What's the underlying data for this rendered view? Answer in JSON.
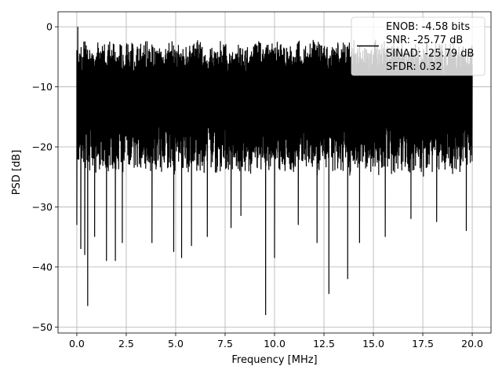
{
  "chart_data": {
    "type": "line",
    "title": "",
    "xlabel": "Frequency [MHz]",
    "ylabel": "PSD [dB]",
    "xlim": [
      -0.95,
      20.95
    ],
    "ylim": [
      -51,
      2.5
    ],
    "x_ticks": [
      0.0,
      2.5,
      5.0,
      7.5,
      10.0,
      12.5,
      15.0,
      17.5,
      20.0
    ],
    "x_tick_labels": [
      "0.0",
      "2.5",
      "5.0",
      "7.5",
      "10.0",
      "12.5",
      "15.0",
      "17.5",
      "20.0"
    ],
    "y_ticks": [
      0,
      -10,
      -20,
      -30,
      -40,
      -50
    ],
    "y_tick_labels": [
      "0",
      "−10",
      "−20",
      "−30",
      "−40",
      "−50"
    ],
    "grid": true,
    "legend_position": "top-right",
    "legend_lines": [
      "ENOB: -4.58 bits",
      "SNR: -25.77 dB",
      "SINAD: -25.79 dB",
      "SFDR: 0.32"
    ],
    "series": [
      {
        "color": "#000000",
        "x_range": [
          0.0,
          20.0
        ],
        "peak": {
          "x": 0.05,
          "y": 0.0
        },
        "noise_envelope": {
          "upper": [
            -6,
            -2
          ],
          "lower": [
            -18,
            -25
          ]
        },
        "notable_dips": [
          {
            "x": 0.0,
            "y": -33
          },
          {
            "x": 0.2,
            "y": -37
          },
          {
            "x": 0.4,
            "y": -38
          },
          {
            "x": 0.55,
            "y": -46.5
          },
          {
            "x": 0.9,
            "y": -35
          },
          {
            "x": 1.5,
            "y": -39
          },
          {
            "x": 1.95,
            "y": -39
          },
          {
            "x": 2.3,
            "y": -36
          },
          {
            "x": 3.8,
            "y": -36
          },
          {
            "x": 4.9,
            "y": -37.5
          },
          {
            "x": 5.3,
            "y": -38.5
          },
          {
            "x": 5.8,
            "y": -36.5
          },
          {
            "x": 6.6,
            "y": -35
          },
          {
            "x": 7.8,
            "y": -33.5
          },
          {
            "x": 8.3,
            "y": -31.5
          },
          {
            "x": 9.55,
            "y": -48
          },
          {
            "x": 10.0,
            "y": -38.5
          },
          {
            "x": 11.2,
            "y": -33
          },
          {
            "x": 12.15,
            "y": -36
          },
          {
            "x": 12.75,
            "y": -44.5
          },
          {
            "x": 13.7,
            "y": -42
          },
          {
            "x": 14.3,
            "y": -36
          },
          {
            "x": 15.6,
            "y": -35
          },
          {
            "x": 16.9,
            "y": -32
          },
          {
            "x": 18.2,
            "y": -32.5
          },
          {
            "x": 19.7,
            "y": -34
          }
        ]
      }
    ]
  }
}
